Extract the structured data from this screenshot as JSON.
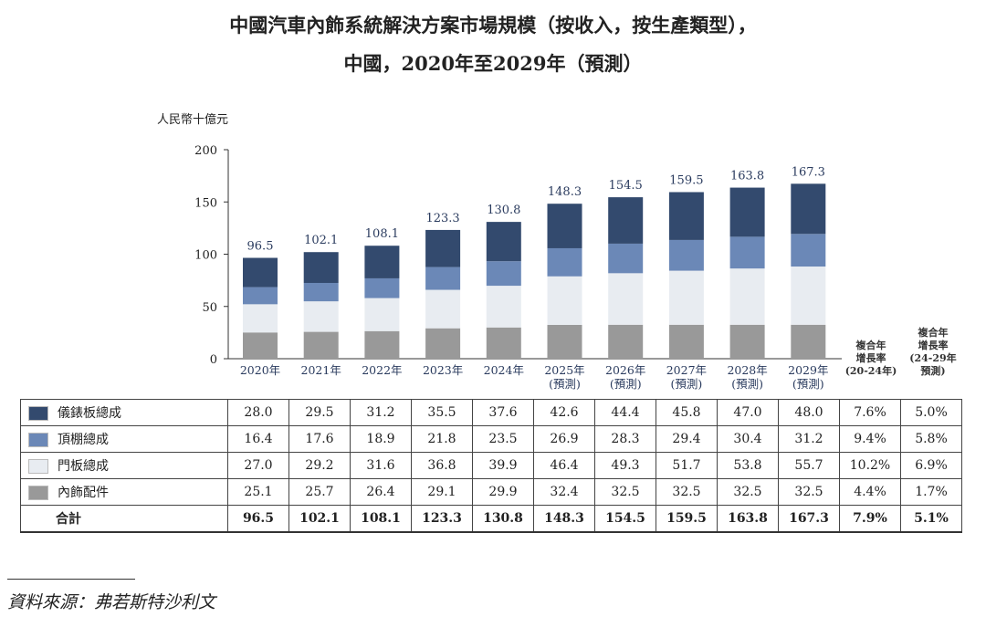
{
  "title_line1": "中國汽車內飾系統解決方案市場規模（按收入，按生產類型），",
  "title_line2": "中國，2020年至2029年（預測）",
  "source": "資料來源：弗若斯特沙利文",
  "chart_data": {
    "type": "bar",
    "stacked": true,
    "ylabel": "人民幣十億元",
    "ylim": [
      0,
      200
    ],
    "yticks": [
      0,
      50,
      100,
      150,
      200
    ],
    "categories": [
      "2020年",
      "2021年",
      "2022年",
      "2023年",
      "2024年",
      "2025年\n(預測)",
      "2026年\n(預測)",
      "2027年\n(預測)",
      "2028年\n(預測)",
      "2029年\n(預測)"
    ],
    "series": [
      {
        "name": "內飾配件",
        "color": "#999999",
        "values": [
          25.1,
          25.7,
          26.4,
          29.1,
          29.9,
          32.4,
          32.5,
          32.5,
          32.5,
          32.5
        ],
        "cagr": [
          "4.4%",
          "1.7%"
        ]
      },
      {
        "name": "門板總成",
        "color": "#e8ecf1",
        "values": [
          27.0,
          29.2,
          31.6,
          36.8,
          39.9,
          46.4,
          49.3,
          51.7,
          53.8,
          55.7
        ],
        "cagr": [
          "10.2%",
          "6.9%"
        ]
      },
      {
        "name": "頂棚總成",
        "color": "#6b88b7",
        "values": [
          16.4,
          17.6,
          18.9,
          21.8,
          23.5,
          26.9,
          28.3,
          29.4,
          30.4,
          31.2
        ],
        "cagr": [
          "9.4%",
          "5.8%"
        ]
      },
      {
        "name": "儀錶板總成",
        "color": "#334a6e",
        "values": [
          28.0,
          29.5,
          31.2,
          35.5,
          37.6,
          42.6,
          44.4,
          45.8,
          47.0,
          48.0
        ],
        "cagr": [
          "7.6%",
          "5.0%"
        ]
      }
    ],
    "totals": {
      "name": "合計",
      "values": [
        96.5,
        102.1,
        108.1,
        123.3,
        130.8,
        148.3,
        154.5,
        159.5,
        163.8,
        167.3
      ],
      "labels": [
        "96.5",
        "102.1",
        "108.1",
        "123.3",
        "130.8",
        "148.3",
        "154.5",
        "159.5",
        "163.8",
        "167.3"
      ],
      "cagr": [
        "7.9%",
        "5.1%"
      ]
    },
    "cagr_headers": [
      "複合年\n增長率\n(20-24年)",
      "複合年\n增長率\n(24-29年\n預測)"
    ],
    "legend_placement": "table-left",
    "grid": false
  }
}
